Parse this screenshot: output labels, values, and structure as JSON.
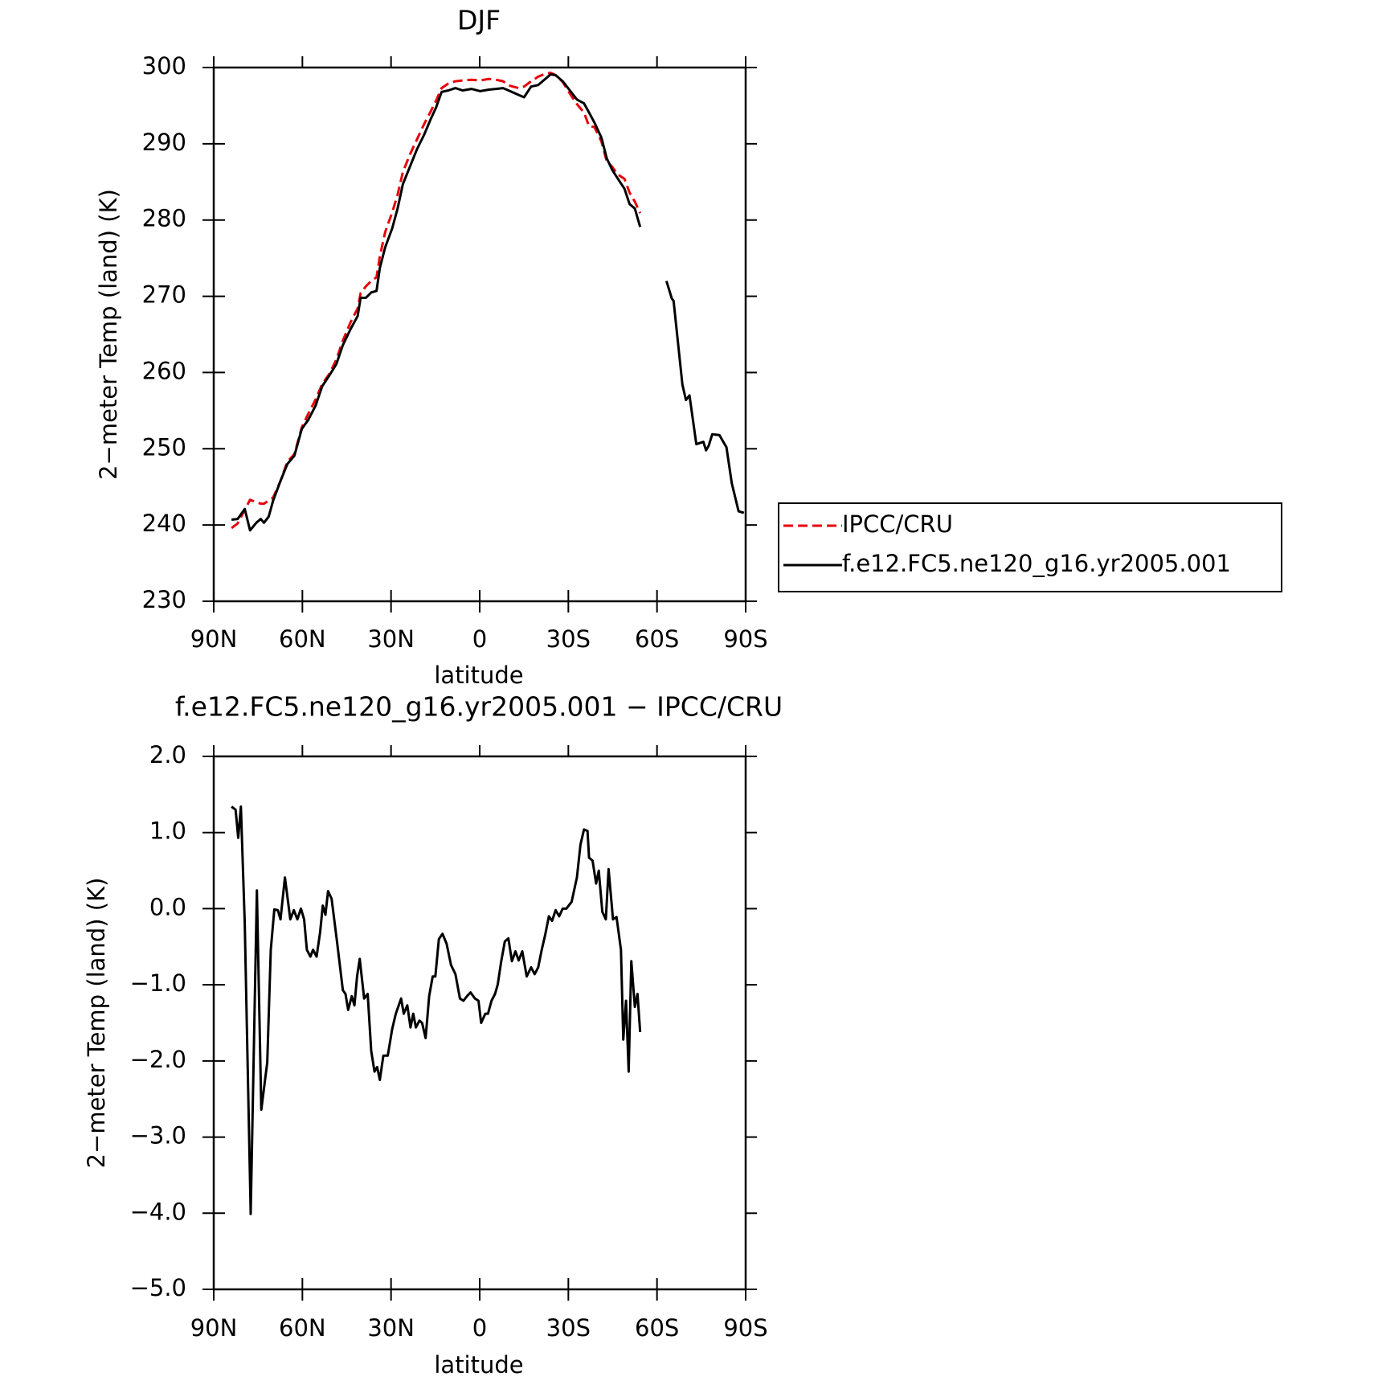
{
  "chart_data": [
    {
      "type": "line",
      "title": "DJF",
      "xlabel": "latitude",
      "ylabel": "2−meter Temp (land) (K)",
      "x": [
        84.0,
        81.9,
        79.5,
        77.7,
        75.6,
        74.1,
        73.0,
        71.4,
        69.9,
        67.5,
        65.1,
        62.7,
        60.2,
        58.0,
        55.6,
        53.3,
        50.9,
        48.5,
        46.3,
        43.7,
        41.3,
        40.3,
        38.5,
        36.7,
        34.9,
        33.8,
        32.0,
        29.6,
        27.8,
        26.0,
        23.6,
        21.2,
        18.8,
        16.5,
        14.7,
        12.9,
        10.6,
        8.2,
        5.8,
        2.8,
        -0.2,
        -3.1,
        -5.5,
        -7.9,
        -10.3,
        -13.2,
        -15.0,
        -17.4,
        -19.8,
        -22.2,
        -24.0,
        -25.7,
        -28.1,
        -30.5,
        -32.9,
        -35.3,
        -37.0,
        -38.8,
        -41.2,
        -43.0,
        -44.8,
        -46.6,
        -49.0,
        -50.7,
        -52.5,
        -54.3,
        -58.8,
        -63.2,
        -65.0,
        -65.6,
        -68.6,
        -69.8,
        -71.0,
        -73.3,
        -75.7,
        -76.6,
        -77.5,
        -78.7,
        -81.1,
        -83.5,
        -85.3,
        -87.6,
        -89.4
      ],
      "series": [
        {
          "name": "IPCC/CRU",
          "color": "#e8000b",
          "dashed": true,
          "values": [
            239.6,
            240.2,
            242.0,
            243.3,
            243.0,
            242.8,
            242.8,
            243.2,
            243.6,
            245.7,
            248.3,
            249.3,
            252.8,
            254.6,
            256.4,
            258.5,
            259.8,
            261.7,
            264.2,
            266.6,
            268.4,
            270.4,
            271.3,
            272.0,
            272.5,
            275.2,
            278.4,
            281.0,
            283.3,
            286.3,
            288.6,
            290.6,
            292.6,
            294.3,
            295.7,
            297.3,
            297.9,
            298.2,
            298.3,
            298.4,
            298.3,
            298.5,
            298.4,
            298.2,
            297.6,
            297.3,
            297.5,
            298.2,
            298.8,
            299.2,
            299.3,
            299.0,
            298.1,
            296.6,
            295.2,
            294.1,
            292.3,
            292.2,
            290.3,
            287.7,
            287.0,
            286.0,
            285.4,
            283.6,
            282.4,
            280.9,
            null,
            null,
            null,
            null,
            null,
            null,
            null,
            null,
            null,
            null,
            null,
            null,
            null,
            null,
            null,
            null,
            null
          ]
        },
        {
          "name": "f.e12.FC5.ne120_g16.yr2005.001",
          "color": "#000000",
          "dashed": false,
          "values": [
            240.7,
            240.8,
            242.1,
            239.3,
            240.3,
            240.8,
            240.3,
            241.1,
            243.2,
            245.7,
            248.0,
            249.1,
            252.6,
            253.8,
            255.6,
            258.2,
            259.6,
            261.1,
            263.6,
            265.7,
            267.4,
            269.8,
            269.8,
            270.5,
            270.7,
            273.7,
            276.4,
            278.9,
            281.5,
            284.7,
            287.0,
            289.3,
            291.2,
            293.3,
            294.8,
            296.8,
            297.0,
            297.3,
            297.0,
            297.2,
            296.9,
            297.1,
            297.2,
            297.3,
            296.9,
            296.4,
            296.1,
            297.5,
            297.7,
            298.5,
            299.1,
            299.0,
            298.2,
            297.0,
            295.8,
            295.3,
            294.1,
            292.8,
            290.8,
            288.1,
            286.6,
            285.5,
            284.1,
            282.1,
            281.5,
            279.1,
            null,
            272.0,
            269.7,
            269.4,
            258.4,
            256.4,
            257.0,
            250.6,
            250.9,
            249.8,
            250.4,
            251.9,
            251.8,
            250.2,
            245.5,
            241.8,
            241.6
          ]
        }
      ],
      "xlim": [
        90,
        -90
      ],
      "xticks": [
        {
          "value": 90,
          "label": "90N"
        },
        {
          "value": 60,
          "label": "60N"
        },
        {
          "value": 30,
          "label": "30N"
        },
        0,
        {
          "value": -30,
          "label": "30S"
        },
        {
          "value": -60,
          "label": "60S"
        },
        {
          "value": -90,
          "label": "90S"
        }
      ],
      "ylim": [
        230,
        300
      ],
      "yticks": [
        230,
        240,
        250,
        260,
        270,
        280,
        290,
        300
      ],
      "legend": "right"
    },
    {
      "type": "line",
      "title": "f.e12.FC5.ne120_g16.yr2005.001 − IPCC/CRU",
      "xlabel": "latitude",
      "ylabel": "2−meter Temp (land) (K)",
      "x": [
        84.0,
        82.6,
        81.7,
        80.8,
        79.5,
        77.5,
        75.4,
        73.9,
        71.9,
        70.7,
        69.5,
        68.3,
        67.4,
        65.9,
        64.1,
        62.9,
        61.7,
        60.5,
        59.4,
        58.5,
        57.3,
        56.4,
        55.2,
        54.0,
        53.1,
        52.2,
        51.3,
        50.1,
        48.3,
        46.3,
        45.4,
        44.5,
        43.3,
        42.4,
        41.5,
        40.6,
        39.1,
        37.9,
        36.7,
        35.6,
        34.7,
        33.8,
        32.6,
        31.1,
        29.6,
        28.4,
        26.6,
        25.7,
        24.5,
        23.4,
        22.5,
        21.6,
        20.4,
        19.5,
        18.3,
        17.1,
        15.9,
        15.0,
        13.8,
        12.6,
        11.2,
        9.7,
        8.2,
        6.7,
        5.5,
        4.3,
        3.1,
        1.6,
        0.4,
        -0.5,
        -1.9,
        -2.8,
        -4.0,
        -5.2,
        -6.1,
        -7.3,
        -8.5,
        -9.7,
        -10.9,
        -12.1,
        -13.2,
        -14.4,
        -15.9,
        -17.4,
        -18.6,
        -19.8,
        -21.0,
        -22.2,
        -23.4,
        -24.5,
        -25.7,
        -26.9,
        -28.1,
        -29.3,
        -31.1,
        -32.9,
        -34.1,
        -35.3,
        -36.5,
        -37.0,
        -38.2,
        -39.4,
        -40.3,
        -41.5,
        -42.7,
        -43.6,
        -45.1,
        -46.3,
        -47.8,
        -48.6,
        -49.5,
        -50.4,
        -51.3,
        -52.5,
        -53.4,
        -54.3
      ],
      "values": [
        1.34,
        1.3,
        0.93,
        1.34,
        -0.19,
        -4.01,
        0.24,
        -2.64,
        -2.02,
        -0.54,
        -0.01,
        -0.02,
        -0.14,
        0.41,
        -0.14,
        -0.02,
        -0.14,
        0.0,
        -0.14,
        -0.54,
        -0.63,
        -0.54,
        -0.63,
        -0.31,
        0.04,
        -0.08,
        0.23,
        0.13,
        -0.43,
        -1.07,
        -1.12,
        -1.33,
        -1.15,
        -1.27,
        -0.89,
        -0.66,
        -1.18,
        -1.12,
        -1.87,
        -2.14,
        -2.08,
        -2.25,
        -1.93,
        -1.93,
        -1.58,
        -1.38,
        -1.18,
        -1.38,
        -1.27,
        -1.56,
        -1.38,
        -1.56,
        -1.47,
        -1.5,
        -1.7,
        -1.15,
        -0.89,
        -0.89,
        -0.4,
        -0.33,
        -0.46,
        -0.74,
        -0.86,
        -1.18,
        -1.21,
        -1.15,
        -1.1,
        -1.18,
        -1.21,
        -1.5,
        -1.38,
        -1.38,
        -1.21,
        -1.12,
        -1.0,
        -0.69,
        -0.43,
        -0.39,
        -0.69,
        -0.56,
        -0.68,
        -0.56,
        -0.89,
        -0.77,
        -0.86,
        -0.77,
        -0.54,
        -0.34,
        -0.1,
        -0.16,
        -0.02,
        -0.1,
        0.0,
        0.0,
        0.09,
        0.41,
        0.84,
        1.04,
        1.02,
        0.67,
        0.63,
        0.33,
        0.5,
        -0.04,
        -0.14,
        0.52,
        -0.14,
        -0.11,
        -0.54,
        -1.72,
        -1.21,
        -2.14,
        -0.69,
        -1.29,
        -1.12,
        -1.62
      ],
      "color": "#000000",
      "xlim": [
        90,
        -90
      ],
      "xticks": [
        {
          "value": 90,
          "label": "90N"
        },
        {
          "value": 60,
          "label": "60N"
        },
        {
          "value": 30,
          "label": "30N"
        },
        0,
        {
          "value": -30,
          "label": "30S"
        },
        {
          "value": -60,
          "label": "60S"
        },
        {
          "value": -90,
          "label": "90S"
        }
      ],
      "ylim": [
        -5,
        2
      ],
      "yticks": [
        {
          "value": -5,
          "label": "−5.0"
        },
        {
          "value": -4,
          "label": "−4.0"
        },
        {
          "value": -3,
          "label": "−3.0"
        },
        {
          "value": -2,
          "label": "−2.0"
        },
        {
          "value": -1,
          "label": "−1.0"
        },
        {
          "value": 0,
          "label": "0.0"
        },
        {
          "value": 1,
          "label": "1.0"
        },
        {
          "value": 2,
          "label": "2.0"
        }
      ]
    }
  ]
}
